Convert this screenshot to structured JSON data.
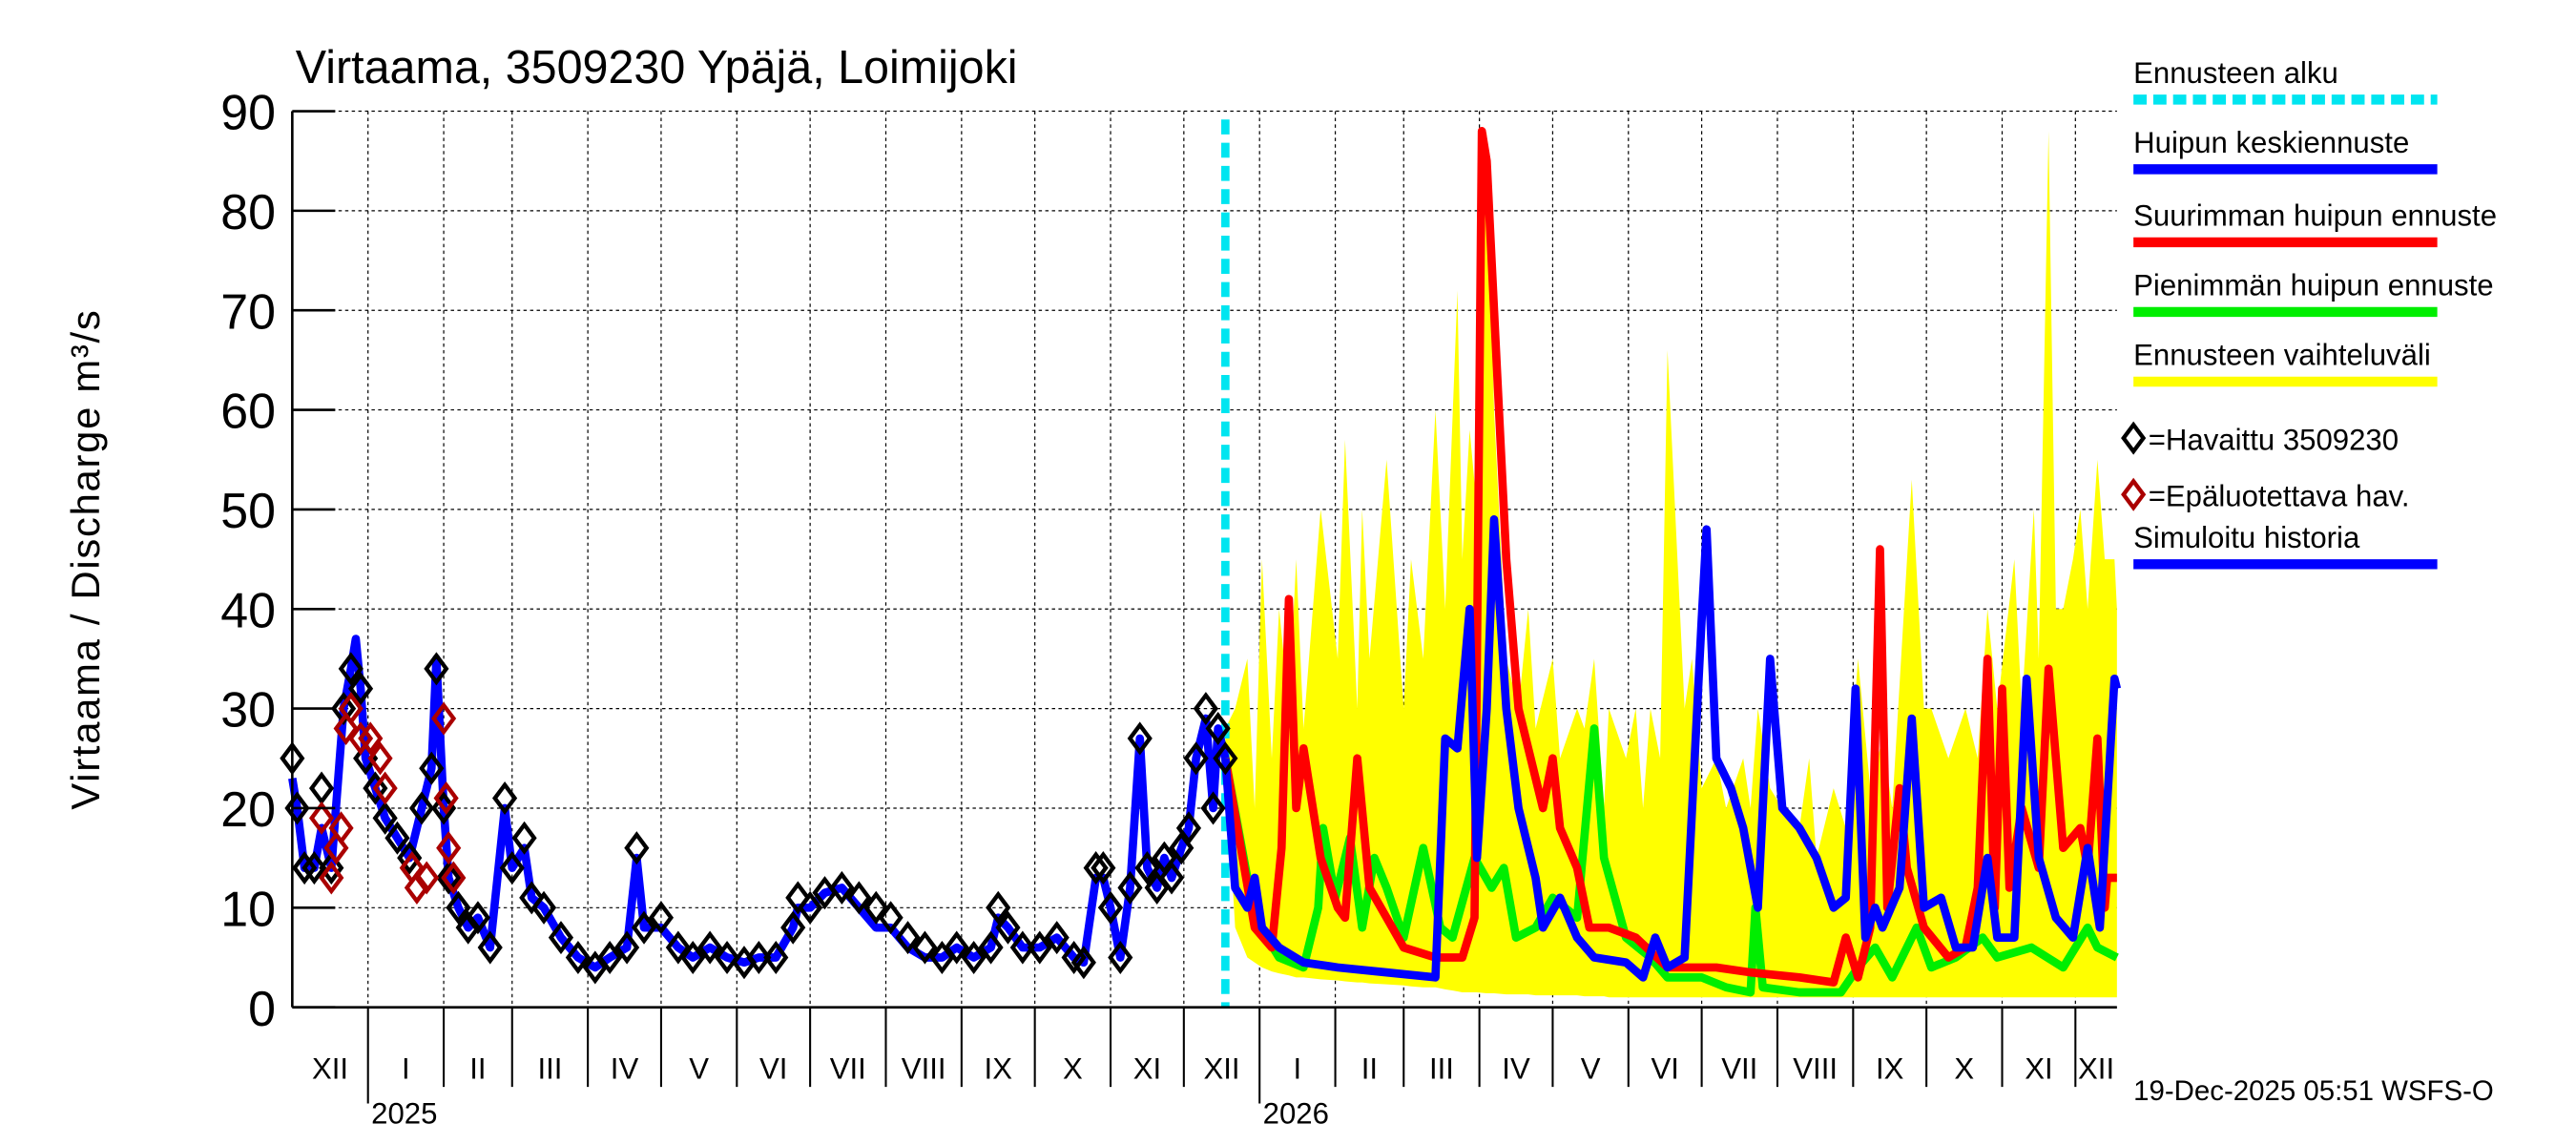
{
  "chart_data": {
    "type": "line",
    "title": "Virtaama, 3509230 Ypäjä, Loimijoki",
    "ylabel": "Virtaama / Discharge    m³/s",
    "xlabel": "",
    "x_unit": "days since 2024-12-01",
    "xlim": [
      0,
      747
    ],
    "ylim": [
      0,
      90
    ],
    "yticks": [
      0,
      10,
      20,
      30,
      40,
      50,
      60,
      70,
      80,
      90
    ],
    "grid": true,
    "month_boundaries": [
      31,
      62,
      90,
      121,
      151,
      182,
      212,
      243,
      274,
      304,
      335,
      365,
      396,
      427,
      455,
      486,
      516,
      547,
      577,
      608,
      639,
      669,
      700,
      730
    ],
    "year_boundaries": [
      31,
      396
    ],
    "month_labels": [
      {
        "label": "XII",
        "start": 0,
        "end": 31
      },
      {
        "label": "I",
        "start": 31,
        "end": 62
      },
      {
        "label": "II",
        "start": 62,
        "end": 90
      },
      {
        "label": "III",
        "start": 90,
        "end": 121
      },
      {
        "label": "IV",
        "start": 121,
        "end": 151
      },
      {
        "label": "V",
        "start": 151,
        "end": 182
      },
      {
        "label": "VI",
        "start": 182,
        "end": 212
      },
      {
        "label": "VII",
        "start": 212,
        "end": 243
      },
      {
        "label": "VIII",
        "start": 243,
        "end": 274
      },
      {
        "label": "IX",
        "start": 274,
        "end": 304
      },
      {
        "label": "X",
        "start": 304,
        "end": 335
      },
      {
        "label": "XI",
        "start": 335,
        "end": 365
      },
      {
        "label": "XII",
        "start": 365,
        "end": 396
      },
      {
        "label": "I",
        "start": 396,
        "end": 427
      },
      {
        "label": "II",
        "start": 427,
        "end": 455
      },
      {
        "label": "III",
        "start": 455,
        "end": 486
      },
      {
        "label": "IV",
        "start": 486,
        "end": 516
      },
      {
        "label": "V",
        "start": 516,
        "end": 547
      },
      {
        "label": "VI",
        "start": 547,
        "end": 577
      },
      {
        "label": "VII",
        "start": 577,
        "end": 608
      },
      {
        "label": "VIII",
        "start": 608,
        "end": 639
      },
      {
        "label": "IX",
        "start": 639,
        "end": 669
      },
      {
        "label": "X",
        "start": 669,
        "end": 700
      },
      {
        "label": "XI",
        "start": 700,
        "end": 730
      },
      {
        "label": "XII",
        "start": 730,
        "end": 747
      }
    ],
    "year_labels": [
      {
        "label": "2025",
        "at": 31
      },
      {
        "label": "2026",
        "at": 396
      }
    ],
    "forecast_start": 382,
    "timestamp": "19-Dec-2025 05:51 WSFS-O",
    "colors": {
      "forecast_start": "#00e5f0",
      "median": "#0000ff",
      "max": "#ff0000",
      "min": "#00ee00",
      "band": "#ffff00",
      "observed": "#000000",
      "unreliable": "#aa0000",
      "history": "#0000ff"
    },
    "legend": [
      {
        "label": "Ennusteen alku",
        "kind": "dash",
        "color": "#00e5f0"
      },
      {
        "label": "Huipun keskiennuste",
        "kind": "line",
        "color": "#0000ff"
      },
      {
        "label": "Suurimman huipun ennuste",
        "kind": "line",
        "color": "#ff0000"
      },
      {
        "label": "Pienimmän huipun ennuste",
        "kind": "line",
        "color": "#00ee00"
      },
      {
        "label": "Ennusteen vaihteluväli",
        "kind": "line",
        "color": "#ffff00"
      },
      {
        "label": "=Havaittu 3509230",
        "kind": "diamond",
        "color": "#000000"
      },
      {
        "label": "=Epäluotettava hav.",
        "kind": "diamond",
        "color": "#aa0000"
      },
      {
        "label": "Simuloitu historia",
        "kind": "line",
        "color": "#0000ff"
      }
    ],
    "legend_placement": "right-outside",
    "series": [
      {
        "name": "Ennusteen vaihteluväli",
        "kind": "band",
        "x": [
          382,
          386,
          391,
          394,
          397,
          401,
          404,
          408,
          411,
          414,
          421,
          428,
          431,
          436,
          438,
          441,
          448,
          455,
          458,
          463,
          468,
          472,
          477,
          479,
          482,
          485,
          489,
          492,
          497,
          502,
          506,
          509,
          516,
          519,
          526,
          529,
          533,
          537,
          539,
          546,
          550,
          553,
          556,
          560,
          563,
          570,
          573,
          577,
          583,
          587,
          594,
          597,
          600,
          605,
          610,
          617,
          621,
          624,
          631,
          636,
          641,
          646,
          651,
          655,
          663,
          668,
          671,
          678,
          685,
          690,
          694,
          698,
          705,
          708,
          713,
          715,
          719,
          722,
          725,
          729,
          732,
          735,
          739,
          742,
          746,
          747
        ],
        "low": [
          25,
          8,
          5,
          4.5,
          4,
          3.6,
          3.4,
          3.2,
          3,
          3,
          2.8,
          2.7,
          2.6,
          2.5,
          2.5,
          2.4,
          2.3,
          2.2,
          2.1,
          2,
          2,
          1.8,
          1.6,
          1.5,
          1.5,
          1.5,
          1.4,
          1.4,
          1.3,
          1.3,
          1.3,
          1.2,
          1.2,
          1.2,
          1.2,
          1.1,
          1.1,
          1.1,
          1,
          1,
          1,
          1,
          1,
          1,
          1,
          1,
          1,
          1,
          1,
          1,
          1,
          1,
          1,
          1,
          1,
          1,
          1,
          1,
          1,
          1,
          1,
          1,
          1,
          1,
          1,
          1,
          1,
          1,
          1,
          1,
          1,
          1,
          1,
          1,
          1,
          1,
          1,
          1,
          1,
          1,
          1,
          1,
          1,
          1,
          1,
          1
        ],
        "high": [
          28,
          30,
          35,
          20,
          45,
          25,
          40,
          30,
          45,
          28,
          50,
          35,
          57,
          30,
          50,
          35,
          55,
          30,
          45,
          35,
          60,
          40,
          72,
          45,
          58,
          50,
          88,
          60,
          35,
          30,
          40,
          28,
          35,
          25,
          30,
          28,
          35,
          20,
          30,
          25,
          30,
          20,
          30,
          25,
          66,
          30,
          35,
          22,
          25,
          20,
          25,
          20,
          30,
          22,
          20,
          18,
          25,
          15,
          22,
          18,
          35,
          22,
          27,
          20,
          53,
          30,
          30,
          25,
          30,
          25,
          40,
          30,
          45,
          30,
          50,
          35,
          88,
          40,
          40,
          45,
          50,
          40,
          55,
          45,
          45,
          40
        ]
      },
      {
        "name": "Pienimmän huipun ennuste",
        "kind": "line",
        "x": [
          382,
          394,
          404,
          414,
          420,
          422,
          427,
          433,
          438,
          443,
          448,
          455,
          463,
          470,
          475,
          484,
          491,
          496,
          501,
          509,
          516,
          526,
          533,
          537,
          546,
          556,
          563,
          577,
          587,
          597,
          599,
          602,
          617,
          634,
          641,
          648,
          655,
          665,
          671,
          681,
          692,
          698,
          712,
          725,
          735,
          739,
          747
        ],
        "y": [
          25,
          9,
          5,
          4,
          10,
          18,
          11,
          17,
          8,
          15,
          12,
          7,
          16,
          8,
          7,
          15,
          12,
          14,
          7,
          8,
          11,
          9,
          28,
          15,
          7,
          5,
          3,
          3,
          2,
          1.5,
          10,
          2,
          1.5,
          1.5,
          4,
          6,
          3,
          8,
          4,
          5,
          7,
          5,
          6,
          4,
          8,
          6,
          5
        ]
      },
      {
        "name": "Suurimman huipun ennuste",
        "kind": "line",
        "x": [
          382,
          394,
          401,
          405,
          408,
          411,
          414,
          421,
          428,
          431,
          436,
          441,
          448,
          455,
          468,
          479,
          484,
          487,
          489,
          497,
          502,
          512,
          516,
          519,
          526,
          531,
          539,
          550,
          563,
          583,
          597,
          617,
          631,
          636,
          641,
          646,
          650,
          653,
          658,
          661,
          668,
          678,
          685,
          690,
          694,
          697,
          700,
          703,
          708,
          715,
          719,
          725,
          732,
          735,
          739,
          742,
          743,
          747
        ],
        "y": [
          25,
          8,
          6,
          16,
          41,
          20,
          26,
          15,
          10,
          9,
          25,
          12,
          9,
          6,
          5,
          5,
          9,
          88,
          85,
          45,
          30,
          20,
          25,
          18,
          14,
          8,
          8,
          7,
          4,
          4,
          3.5,
          3,
          2.5,
          7,
          3,
          8,
          46,
          10,
          22,
          14,
          8,
          5,
          6,
          12,
          35,
          10,
          32,
          12,
          20,
          14,
          34,
          16,
          18,
          14,
          27,
          10,
          13,
          13
        ]
      },
      {
        "name": "Huipun keskiennuste",
        "kind": "line",
        "x": [
          382,
          386,
          391,
          394,
          397,
          404,
          414,
          428,
          448,
          468,
          472,
          477,
          482,
          485,
          489,
          492,
          497,
          502,
          509,
          512,
          519,
          526,
          533,
          546,
          553,
          558,
          563,
          570,
          577,
          579,
          583,
          589,
          594,
          600,
          605,
          610,
          617,
          624,
          631,
          636,
          640,
          644,
          648,
          651,
          658,
          663,
          668,
          675,
          681,
          688,
          694,
          698,
          705,
          710,
          715,
          722,
          729,
          735,
          740,
          746,
          747
        ],
        "y": [
          25,
          12,
          10,
          13,
          8,
          6,
          4.5,
          4,
          3.5,
          3,
          27,
          26,
          40,
          15,
          30,
          49,
          30,
          20,
          13,
          8,
          11,
          7,
          5,
          4.5,
          3,
          7,
          4,
          5,
          39,
          48,
          25,
          22,
          18,
          10,
          35,
          20,
          18,
          15,
          10,
          11,
          32,
          7,
          10,
          8,
          12,
          29,
          10,
          11,
          6,
          6,
          15,
          7,
          7,
          33,
          15,
          9,
          7,
          16,
          8,
          33,
          32
        ]
      },
      {
        "name": "Simuloitu historia",
        "kind": "line",
        "x": [
          0,
          2,
          5,
          9,
          12,
          16,
          21,
          24,
          26,
          28,
          30,
          34,
          38,
          43,
          48,
          53,
          57,
          59,
          62,
          64,
          68,
          72,
          76,
          81,
          87,
          90,
          95,
          98,
          103,
          110,
          117,
          124,
          130,
          137,
          141,
          144,
          151,
          158,
          164,
          171,
          178,
          185,
          191,
          198,
          205,
          207,
          212,
          218,
          225,
          232,
          239,
          245,
          252,
          259,
          266,
          272,
          279,
          286,
          289,
          293,
          299,
          306,
          313,
          320,
          324,
          329,
          332,
          335,
          339,
          343,
          347,
          350,
          354,
          357,
          360,
          364,
          367,
          370,
          374,
          377,
          379,
          382
        ],
        "y": [
          23,
          20,
          14,
          14,
          18,
          14,
          30,
          34,
          37,
          32,
          25,
          22,
          19,
          17,
          15,
          20,
          24,
          35,
          20,
          13,
          10,
          8,
          9,
          6,
          20,
          14,
          16,
          11,
          10,
          7,
          5,
          4,
          5,
          6,
          15,
          8,
          8,
          6,
          5,
          6,
          5,
          4.5,
          5,
          5,
          8,
          10,
          10,
          11.5,
          12,
          10,
          8,
          8,
          6,
          5,
          5,
          6,
          5,
          6,
          9,
          8,
          6,
          6,
          7,
          5,
          4.5,
          13,
          13,
          10,
          5,
          12,
          27,
          14,
          12,
          15,
          13,
          16,
          18,
          25,
          29,
          20,
          28,
          25
        ]
      },
      {
        "name": "Havaittu 3509230",
        "kind": "scatter",
        "x": [
          0,
          2,
          5,
          9,
          12,
          16,
          21,
          24,
          28,
          30,
          34,
          38,
          43,
          48,
          53,
          57,
          59,
          62,
          64,
          68,
          72,
          76,
          81,
          87,
          90,
          95,
          98,
          103,
          110,
          117,
          124,
          130,
          137,
          141,
          144,
          151,
          158,
          164,
          171,
          178,
          185,
          191,
          198,
          205,
          207,
          212,
          218,
          225,
          232,
          239,
          245,
          252,
          259,
          266,
          272,
          279,
          286,
          289,
          293,
          299,
          306,
          313,
          320,
          324,
          329,
          332,
          335,
          339,
          343,
          347,
          350,
          354,
          357,
          360,
          364,
          367,
          370,
          374,
          377,
          379,
          382
        ],
        "y": [
          25,
          20,
          14,
          14,
          22,
          14,
          30,
          34,
          32,
          25,
          22,
          19,
          17,
          15,
          20,
          24,
          34,
          20,
          13,
          10,
          8,
          9,
          6,
          21,
          14,
          17,
          11,
          10,
          7,
          5,
          4,
          5,
          6,
          16,
          8,
          9,
          6,
          5,
          6,
          5,
          4.5,
          5,
          5,
          8,
          11,
          10,
          11.5,
          12,
          11,
          10,
          9,
          7,
          6,
          5,
          6,
          5,
          6,
          10,
          8,
          6,
          6,
          7,
          5,
          4.5,
          14,
          14,
          10,
          5,
          12,
          27,
          14,
          12,
          15,
          13,
          16,
          18,
          25,
          30,
          20,
          28,
          25
        ]
      },
      {
        "name": "Epäluotettava hav.",
        "kind": "scatter",
        "x": [
          12,
          16,
          18,
          20,
          22,
          24,
          28,
          32,
          36,
          38,
          49,
          51,
          55,
          62,
          63,
          64,
          66
        ],
        "y": [
          19,
          13,
          16,
          18,
          28,
          30,
          27,
          27,
          25,
          22,
          14,
          12,
          13,
          29,
          21,
          16,
          13
        ]
      }
    ]
  }
}
